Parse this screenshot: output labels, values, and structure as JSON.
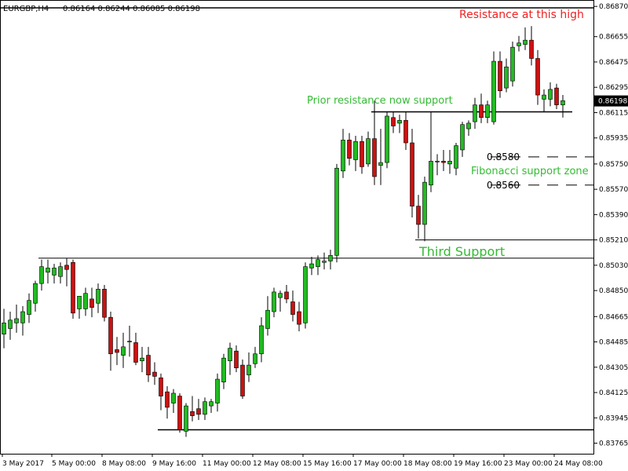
{
  "header": {
    "symbol": "EURGBP,H4",
    "ohlc": "0.86164 0.86244 0.86085 0.86198"
  },
  "current_price": "0.86198",
  "colors": {
    "bull": "#22bb22",
    "bear": "#cc1111",
    "wick": "#000000",
    "annotation_green": "#33bb33",
    "annotation_red": "#ee2222",
    "line": "#000000"
  },
  "chart_data": {
    "type": "candlestick",
    "title": "",
    "ylim": [
      0.8369,
      0.8691
    ],
    "y_ticks": [
      "0.86870",
      "0.86655",
      "0.86475",
      "0.86295",
      "0.86115",
      "0.85935",
      "0.85750",
      "0.85570",
      "0.85390",
      "0.85210",
      "0.85030",
      "0.84850",
      "0.84665",
      "0.84485",
      "0.84305",
      "0.84125",
      "0.83945",
      "0.83765"
    ],
    "x_ticks": [
      "3 May 2017",
      "5 May 00:00",
      "8 May 08:00",
      "9 May 16:00",
      "11 May 00:00",
      "12 May 08:00",
      "15 May 16:00",
      "17 May 00:00",
      "18 May 08:00",
      "19 May 16:00",
      "23 May 00:00",
      "24 May 08:00"
    ],
    "grid": false,
    "candles": [
      {
        "o": 0.8454,
        "h": 0.8472,
        "l": 0.8444,
        "c": 0.8462
      },
      {
        "o": 0.8458,
        "h": 0.847,
        "l": 0.845,
        "c": 0.8464
      },
      {
        "o": 0.8462,
        "h": 0.8475,
        "l": 0.8455,
        "c": 0.8465
      },
      {
        "o": 0.8462,
        "h": 0.8474,
        "l": 0.8453,
        "c": 0.847
      },
      {
        "o": 0.8468,
        "h": 0.8483,
        "l": 0.8462,
        "c": 0.8478
      },
      {
        "o": 0.8476,
        "h": 0.8492,
        "l": 0.847,
        "c": 0.849
      },
      {
        "o": 0.849,
        "h": 0.8507,
        "l": 0.8485,
        "c": 0.8502
      },
      {
        "o": 0.8498,
        "h": 0.8507,
        "l": 0.849,
        "c": 0.8501
      },
      {
        "o": 0.8496,
        "h": 0.8504,
        "l": 0.849,
        "c": 0.8501
      },
      {
        "o": 0.8495,
        "h": 0.8505,
        "l": 0.849,
        "c": 0.8502
      },
      {
        "o": 0.8503,
        "h": 0.8508,
        "l": 0.8488,
        "c": 0.85
      },
      {
        "o": 0.8505,
        "h": 0.8507,
        "l": 0.8465,
        "c": 0.8469
      },
      {
        "o": 0.8472,
        "h": 0.848,
        "l": 0.8465,
        "c": 0.8481
      },
      {
        "o": 0.8472,
        "h": 0.8487,
        "l": 0.8467,
        "c": 0.8483
      },
      {
        "o": 0.8479,
        "h": 0.8487,
        "l": 0.8466,
        "c": 0.8473
      },
      {
        "o": 0.8476,
        "h": 0.849,
        "l": 0.8469,
        "c": 0.8486
      },
      {
        "o": 0.8486,
        "h": 0.8489,
        "l": 0.8463,
        "c": 0.8466
      },
      {
        "o": 0.8466,
        "h": 0.847,
        "l": 0.8428,
        "c": 0.844
      },
      {
        "o": 0.8443,
        "h": 0.8452,
        "l": 0.8432,
        "c": 0.8441
      },
      {
        "o": 0.8439,
        "h": 0.8455,
        "l": 0.843,
        "c": 0.8445
      },
      {
        "o": 0.8449,
        "h": 0.846,
        "l": 0.8438,
        "c": 0.8449
      },
      {
        "o": 0.8448,
        "h": 0.8455,
        "l": 0.8432,
        "c": 0.8434
      },
      {
        "o": 0.8435,
        "h": 0.8445,
        "l": 0.8427,
        "c": 0.8437
      },
      {
        "o": 0.8439,
        "h": 0.8445,
        "l": 0.842,
        "c": 0.8425
      },
      {
        "o": 0.8427,
        "h": 0.8434,
        "l": 0.8418,
        "c": 0.8424
      },
      {
        "o": 0.8423,
        "h": 0.8426,
        "l": 0.84,
        "c": 0.841
      },
      {
        "o": 0.8413,
        "h": 0.8417,
        "l": 0.8394,
        "c": 0.8402
      },
      {
        "o": 0.8405,
        "h": 0.8415,
        "l": 0.8398,
        "c": 0.8412
      },
      {
        "o": 0.841,
        "h": 0.8412,
        "l": 0.8384,
        "c": 0.8386
      },
      {
        "o": 0.8385,
        "h": 0.8405,
        "l": 0.8381,
        "c": 0.8403
      },
      {
        "o": 0.8399,
        "h": 0.841,
        "l": 0.8392,
        "c": 0.8396
      },
      {
        "o": 0.8401,
        "h": 0.8408,
        "l": 0.8393,
        "c": 0.8397
      },
      {
        "o": 0.8397,
        "h": 0.8409,
        "l": 0.8393,
        "c": 0.8406
      },
      {
        "o": 0.8403,
        "h": 0.8408,
        "l": 0.8398,
        "c": 0.8406
      },
      {
        "o": 0.8405,
        "h": 0.8426,
        "l": 0.8399,
        "c": 0.8422
      },
      {
        "o": 0.842,
        "h": 0.844,
        "l": 0.8415,
        "c": 0.8437
      },
      {
        "o": 0.8435,
        "h": 0.8448,
        "l": 0.8425,
        "c": 0.8444
      },
      {
        "o": 0.8442,
        "h": 0.8446,
        "l": 0.8427,
        "c": 0.843
      },
      {
        "o": 0.8432,
        "h": 0.8436,
        "l": 0.8408,
        "c": 0.841
      },
      {
        "o": 0.8425,
        "h": 0.8441,
        "l": 0.842,
        "c": 0.8432
      },
      {
        "o": 0.8433,
        "h": 0.8445,
        "l": 0.843,
        "c": 0.844
      },
      {
        "o": 0.844,
        "h": 0.8466,
        "l": 0.8434,
        "c": 0.846
      },
      {
        "o": 0.8458,
        "h": 0.8481,
        "l": 0.8453,
        "c": 0.8471
      },
      {
        "o": 0.847,
        "h": 0.8487,
        "l": 0.8466,
        "c": 0.8484
      },
      {
        "o": 0.848,
        "h": 0.8485,
        "l": 0.847,
        "c": 0.8483
      },
      {
        "o": 0.8484,
        "h": 0.8489,
        "l": 0.8476,
        "c": 0.8479
      },
      {
        "o": 0.8477,
        "h": 0.8485,
        "l": 0.8463,
        "c": 0.8468
      },
      {
        "o": 0.847,
        "h": 0.8477,
        "l": 0.8456,
        "c": 0.8461
      },
      {
        "o": 0.8462,
        "h": 0.8505,
        "l": 0.8458,
        "c": 0.8502
      },
      {
        "o": 0.8501,
        "h": 0.8509,
        "l": 0.8496,
        "c": 0.8504
      },
      {
        "o": 0.8502,
        "h": 0.851,
        "l": 0.8496,
        "c": 0.8507
      },
      {
        "o": 0.8505,
        "h": 0.8512,
        "l": 0.85,
        "c": 0.8506
      },
      {
        "o": 0.8506,
        "h": 0.8514,
        "l": 0.85,
        "c": 0.851
      },
      {
        "o": 0.851,
        "h": 0.8575,
        "l": 0.8505,
        "c": 0.8572
      },
      {
        "o": 0.857,
        "h": 0.86,
        "l": 0.8565,
        "c": 0.8592
      },
      {
        "o": 0.8592,
        "h": 0.8597,
        "l": 0.8574,
        "c": 0.8579
      },
      {
        "o": 0.8578,
        "h": 0.8595,
        "l": 0.857,
        "c": 0.8591
      },
      {
        "o": 0.8591,
        "h": 0.8595,
        "l": 0.8568,
        "c": 0.8573
      },
      {
        "o": 0.8575,
        "h": 0.8598,
        "l": 0.8573,
        "c": 0.8593
      },
      {
        "o": 0.8593,
        "h": 0.862,
        "l": 0.856,
        "c": 0.8566
      },
      {
        "o": 0.8574,
        "h": 0.86,
        "l": 0.856,
        "c": 0.8576
      },
      {
        "o": 0.8576,
        "h": 0.8612,
        "l": 0.8572,
        "c": 0.8609
      },
      {
        "o": 0.8608,
        "h": 0.8612,
        "l": 0.8597,
        "c": 0.8602
      },
      {
        "o": 0.8604,
        "h": 0.861,
        "l": 0.8597,
        "c": 0.8606
      },
      {
        "o": 0.8606,
        "h": 0.8612,
        "l": 0.8585,
        "c": 0.859
      },
      {
        "o": 0.859,
        "h": 0.86,
        "l": 0.8537,
        "c": 0.8545
      },
      {
        "o": 0.8545,
        "h": 0.8553,
        "l": 0.8522,
        "c": 0.8532
      },
      {
        "o": 0.8532,
        "h": 0.8566,
        "l": 0.852,
        "c": 0.8562
      },
      {
        "o": 0.856,
        "h": 0.8612,
        "l": 0.8555,
        "c": 0.8577
      },
      {
        "o": 0.8577,
        "h": 0.8582,
        "l": 0.8567,
        "c": 0.8577
      },
      {
        "o": 0.8577,
        "h": 0.8585,
        "l": 0.857,
        "c": 0.8576
      },
      {
        "o": 0.8575,
        "h": 0.8585,
        "l": 0.8568,
        "c": 0.8577
      },
      {
        "o": 0.8572,
        "h": 0.859,
        "l": 0.8567,
        "c": 0.8588
      },
      {
        "o": 0.8585,
        "h": 0.8605,
        "l": 0.858,
        "c": 0.8603
      },
      {
        "o": 0.86,
        "h": 0.8606,
        "l": 0.8595,
        "c": 0.8604
      },
      {
        "o": 0.8605,
        "h": 0.8622,
        "l": 0.86,
        "c": 0.8617
      },
      {
        "o": 0.8617,
        "h": 0.8625,
        "l": 0.8604,
        "c": 0.8608
      },
      {
        "o": 0.8608,
        "h": 0.862,
        "l": 0.8604,
        "c": 0.8617
      },
      {
        "o": 0.8605,
        "h": 0.8655,
        "l": 0.8603,
        "c": 0.8648
      },
      {
        "o": 0.8648,
        "h": 0.8655,
        "l": 0.8622,
        "c": 0.8627
      },
      {
        "o": 0.8629,
        "h": 0.865,
        "l": 0.8626,
        "c": 0.8644
      },
      {
        "o": 0.8634,
        "h": 0.8662,
        "l": 0.863,
        "c": 0.8658
      },
      {
        "o": 0.8659,
        "h": 0.8666,
        "l": 0.8655,
        "c": 0.8661
      },
      {
        "o": 0.866,
        "h": 0.8672,
        "l": 0.8656,
        "c": 0.8663
      },
      {
        "o": 0.8663,
        "h": 0.8673,
        "l": 0.8645,
        "c": 0.865
      },
      {
        "o": 0.865,
        "h": 0.8656,
        "l": 0.8617,
        "c": 0.8624
      },
      {
        "o": 0.8621,
        "h": 0.8628,
        "l": 0.8612,
        "c": 0.8624
      },
      {
        "o": 0.8621,
        "h": 0.8633,
        "l": 0.8616,
        "c": 0.8628
      },
      {
        "o": 0.8629,
        "h": 0.8632,
        "l": 0.8614,
        "c": 0.8617
      },
      {
        "o": 0.8617,
        "h": 0.8624,
        "l": 0.8608,
        "c": 0.862
      }
    ],
    "horizontal_lines": [
      {
        "price": 0.8686,
        "from_candle": 0,
        "to_candle": null,
        "style": "solid",
        "width": 1.5
      },
      {
        "price": 0.8612,
        "from_candle": 59,
        "to_candle": 90,
        "style": "solid",
        "width": 1.5
      },
      {
        "price": 0.858,
        "from_candle": 78,
        "to_candle": null,
        "style": "dashed",
        "width": 1
      },
      {
        "price": 0.856,
        "from_candle": 78,
        "to_candle": null,
        "style": "dashed",
        "width": 1
      },
      {
        "price": 0.8521,
        "from_candle": 66,
        "to_candle": null,
        "style": "solid",
        "width": 1
      },
      {
        "price": 0.8508,
        "from_candle": 6,
        "to_candle": null,
        "style": "solid",
        "width": 1
      },
      {
        "price": 0.8386,
        "from_candle": 25,
        "to_candle": null,
        "style": "solid",
        "width": 1.5
      }
    ]
  },
  "annotations": {
    "resistance": "Resistance at this high",
    "prior_resistance": "Prior resistance now support",
    "fib_upper": "0.8580",
    "fib_label": "Fibonacci support zone",
    "fib_lower": "0.8560",
    "third_support": "Third Support"
  }
}
